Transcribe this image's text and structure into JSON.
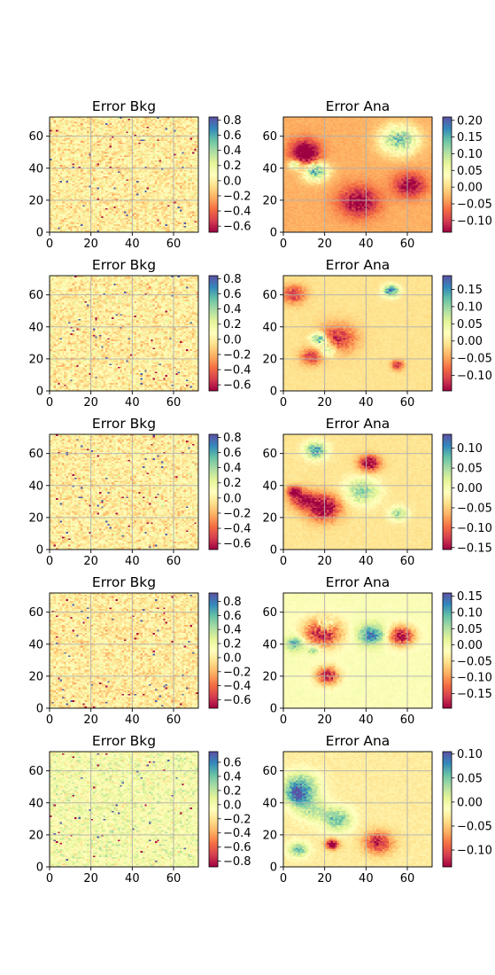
{
  "figure": {
    "rows": 5,
    "columns": 2,
    "grid": true,
    "colormap": "Spectral"
  },
  "chart_data": [
    {
      "type": "heatmap",
      "title": "Error Bkg",
      "kind": "noise",
      "xlim": [
        0,
        72
      ],
      "ylim": [
        0,
        72
      ],
      "xticks": [
        "0",
        "20",
        "40",
        "60"
      ],
      "yticks": [
        "0",
        "20",
        "40",
        "60"
      ],
      "clim": [
        -0.68,
        0.84
      ],
      "colorbar_ticks": [
        "0.8",
        "0.6",
        "0.4",
        "0.2",
        "0.0",
        "−0.2",
        "−0.4",
        "−0.6"
      ],
      "colorbar_values": [
        0.8,
        0.6,
        0.4,
        0.2,
        0.0,
        -0.2,
        -0.4,
        -0.6
      ]
    },
    {
      "type": "heatmap",
      "title": "Error Ana",
      "kind": "smooth",
      "xlim": [
        0,
        72
      ],
      "ylim": [
        0,
        72
      ],
      "xticks": [
        "0",
        "20",
        "40",
        "60"
      ],
      "yticks": [
        "0",
        "20",
        "40",
        "60"
      ],
      "clim": [
        -0.135,
        0.21
      ],
      "colorbar_ticks": [
        "0.20",
        "0.15",
        "0.10",
        "0.05",
        "0.00",
        "−0.05",
        "−0.10"
      ],
      "colorbar_values": [
        0.2,
        0.15,
        0.1,
        0.05,
        0.0,
        -0.05,
        -0.1
      ]
    },
    {
      "type": "heatmap",
      "title": "Error Bkg",
      "kind": "noise",
      "xlim": [
        0,
        72
      ],
      "ylim": [
        0,
        72
      ],
      "xticks": [
        "0",
        "20",
        "40",
        "60"
      ],
      "yticks": [
        "0",
        "20",
        "40",
        "60"
      ],
      "clim": [
        -0.68,
        0.84
      ],
      "colorbar_ticks": [
        "0.8",
        "0.6",
        "0.4",
        "0.2",
        "0.0",
        "−0.2",
        "−0.4",
        "−0.6"
      ],
      "colorbar_values": [
        0.8,
        0.6,
        0.4,
        0.2,
        0.0,
        -0.2,
        -0.4,
        -0.6
      ]
    },
    {
      "type": "heatmap",
      "title": "Error Ana",
      "kind": "smooth",
      "xlim": [
        0,
        72
      ],
      "ylim": [
        0,
        72
      ],
      "xticks": [
        "0",
        "20",
        "40",
        "60"
      ],
      "yticks": [
        "0",
        "20",
        "40",
        "60"
      ],
      "clim": [
        -0.145,
        0.19
      ],
      "colorbar_ticks": [
        "0.15",
        "0.10",
        "0.05",
        "0.00",
        "−0.05",
        "−0.10"
      ],
      "colorbar_values": [
        0.15,
        0.1,
        0.05,
        0.0,
        -0.05,
        -0.1
      ]
    },
    {
      "type": "heatmap",
      "title": "Error Bkg",
      "kind": "noise",
      "xlim": [
        0,
        72
      ],
      "ylim": [
        0,
        72
      ],
      "xticks": [
        "0",
        "20",
        "40",
        "60"
      ],
      "yticks": [
        "0",
        "20",
        "40",
        "60"
      ],
      "clim": [
        -0.68,
        0.84
      ],
      "colorbar_ticks": [
        "0.8",
        "0.6",
        "0.4",
        "0.2",
        "0.0",
        "−0.2",
        "−0.4",
        "−0.6"
      ],
      "colorbar_values": [
        0.8,
        0.6,
        0.4,
        0.2,
        0.0,
        -0.2,
        -0.4,
        -0.6
      ]
    },
    {
      "type": "heatmap",
      "title": "Error Ana",
      "kind": "smooth",
      "xlim": [
        0,
        72
      ],
      "ylim": [
        0,
        72
      ],
      "xticks": [
        "0",
        "20",
        "40",
        "60"
      ],
      "yticks": [
        "0",
        "20",
        "40",
        "60"
      ],
      "clim": [
        -0.155,
        0.135
      ],
      "colorbar_ticks": [
        "0.10",
        "0.05",
        "0.00",
        "−0.05",
        "−0.10",
        "−0.15"
      ],
      "colorbar_values": [
        0.1,
        0.05,
        0.0,
        -0.05,
        -0.1,
        -0.15
      ]
    },
    {
      "type": "heatmap",
      "title": "Error Bkg",
      "kind": "noise",
      "xlim": [
        0,
        72
      ],
      "ylim": [
        0,
        72
      ],
      "xticks": [
        "0",
        "20",
        "40",
        "60"
      ],
      "yticks": [
        "0",
        "20",
        "40",
        "60"
      ],
      "clim": [
        -0.72,
        0.92
      ],
      "colorbar_ticks": [
        "0.8",
        "0.6",
        "0.4",
        "0.2",
        "0.0",
        "−0.2",
        "−0.4",
        "−0.6"
      ],
      "colorbar_values": [
        0.8,
        0.6,
        0.4,
        0.2,
        0.0,
        -0.2,
        -0.4,
        -0.6
      ]
    },
    {
      "type": "heatmap",
      "title": "Error Ana",
      "kind": "smooth",
      "xlim": [
        0,
        72
      ],
      "ylim": [
        0,
        72
      ],
      "xticks": [
        "0",
        "20",
        "40",
        "60"
      ],
      "yticks": [
        "0",
        "20",
        "40",
        "60"
      ],
      "clim": [
        -0.195,
        0.16
      ],
      "colorbar_ticks": [
        "0.15",
        "0.10",
        "0.05",
        "0.00",
        "−0.05",
        "−0.10",
        "−0.15"
      ],
      "colorbar_values": [
        0.15,
        0.1,
        0.05,
        0.0,
        -0.05,
        -0.1,
        -0.15
      ]
    },
    {
      "type": "heatmap",
      "title": "Error Bkg",
      "kind": "noise",
      "xlim": [
        0,
        72
      ],
      "ylim": [
        0,
        72
      ],
      "xticks": [
        "0",
        "20",
        "40",
        "60"
      ],
      "yticks": [
        "0",
        "20",
        "40",
        "60"
      ],
      "clim": [
        -0.88,
        0.75
      ],
      "colorbar_ticks": [
        "0.6",
        "0.4",
        "0.2",
        "0.0",
        "−0.2",
        "−0.4",
        "−0.6",
        "−0.8"
      ],
      "colorbar_values": [
        0.6,
        0.4,
        0.2,
        0.0,
        -0.2,
        -0.4,
        -0.6,
        -0.8
      ]
    },
    {
      "type": "heatmap",
      "title": "Error Ana",
      "kind": "smooth",
      "xlim": [
        0,
        72
      ],
      "ylim": [
        0,
        72
      ],
      "xticks": [
        "0",
        "20",
        "40",
        "60"
      ],
      "yticks": [
        "0",
        "20",
        "40",
        "60"
      ],
      "clim": [
        -0.135,
        0.105
      ],
      "colorbar_ticks": [
        "0.10",
        "0.05",
        "0.00",
        "−0.05",
        "−0.10"
      ],
      "colorbar_values": [
        0.1,
        0.05,
        0.0,
        -0.05,
        -0.1
      ]
    }
  ]
}
